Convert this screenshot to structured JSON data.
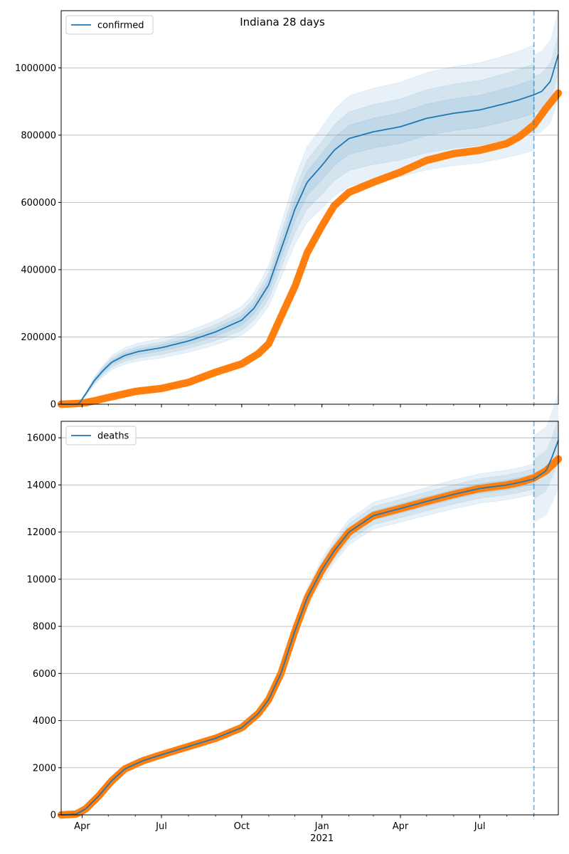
{
  "figure": {
    "title": "Indiana 28 days"
  },
  "colors": {
    "model": "#1f77b4",
    "observed": "#ff7f0e",
    "band": "#1f77b4",
    "grid": "#b0b0b0",
    "axis": "#000000"
  },
  "chart_data": [
    {
      "type": "line",
      "name": "confirmed",
      "legend": {
        "label": "confirmed",
        "placement": "upper-left"
      },
      "grid": "horizontal",
      "x_range": [
        "2020-03-08",
        "2021-09-29"
      ],
      "x_ticks": [
        {
          "date": "2020-04-01",
          "label": "Apr"
        },
        {
          "date": "2020-07-01",
          "label": "Jul"
        },
        {
          "date": "2020-10-01",
          "label": "Oct"
        },
        {
          "date": "2021-01-01",
          "label": "Jan",
          "sublabel": "2021"
        },
        {
          "date": "2021-04-01",
          "label": "Apr"
        },
        {
          "date": "2021-07-01",
          "label": "Jul"
        }
      ],
      "ylim": [
        0,
        1170000
      ],
      "y_ticks": [
        0,
        200000,
        400000,
        600000,
        800000,
        1000000
      ],
      "forecast_start": "2021-09-01",
      "model": [
        [
          "2020-03-08",
          0
        ],
        [
          "2020-03-28",
          0
        ],
        [
          "2020-04-05",
          30000
        ],
        [
          "2020-04-15",
          70000
        ],
        [
          "2020-04-25",
          100000
        ],
        [
          "2020-05-05",
          125000
        ],
        [
          "2020-05-20",
          145000
        ],
        [
          "2020-06-05",
          157000
        ],
        [
          "2020-07-01",
          168000
        ],
        [
          "2020-08-01",
          188000
        ],
        [
          "2020-09-01",
          215000
        ],
        [
          "2020-10-01",
          250000
        ],
        [
          "2020-10-15",
          285000
        ],
        [
          "2020-11-01",
          355000
        ],
        [
          "2020-11-15",
          460000
        ],
        [
          "2020-12-01",
          580000
        ],
        [
          "2020-12-15",
          660000
        ],
        [
          "2021-01-01",
          710000
        ],
        [
          "2021-01-15",
          755000
        ],
        [
          "2021-02-01",
          790000
        ],
        [
          "2021-03-01",
          810000
        ],
        [
          "2021-04-01",
          825000
        ],
        [
          "2021-05-01",
          850000
        ],
        [
          "2021-06-01",
          865000
        ],
        [
          "2021-07-01",
          875000
        ],
        [
          "2021-08-01",
          895000
        ],
        [
          "2021-08-15",
          905000
        ],
        [
          "2021-09-01",
          920000
        ],
        [
          "2021-09-10",
          930000
        ],
        [
          "2021-09-20",
          960000
        ],
        [
          "2021-09-29",
          1040000
        ]
      ],
      "model_bands": [
        {
          "upper": 1.16,
          "lower": 0.82
        },
        {
          "upper": 1.1,
          "lower": 0.88
        },
        {
          "upper": 1.05,
          "lower": 0.94
        }
      ],
      "observed": [
        [
          "2020-03-08",
          0
        ],
        [
          "2020-04-01",
          3000
        ],
        [
          "2020-04-15",
          10000
        ],
        [
          "2020-05-01",
          20000
        ],
        [
          "2020-06-01",
          38000
        ],
        [
          "2020-07-01",
          47000
        ],
        [
          "2020-08-01",
          65000
        ],
        [
          "2020-09-01",
          95000
        ],
        [
          "2020-10-01",
          120000
        ],
        [
          "2020-10-20",
          150000
        ],
        [
          "2020-11-01",
          180000
        ],
        [
          "2020-11-15",
          260000
        ],
        [
          "2020-12-01",
          350000
        ],
        [
          "2020-12-15",
          450000
        ],
        [
          "2021-01-01",
          530000
        ],
        [
          "2021-01-15",
          590000
        ],
        [
          "2021-02-01",
          630000
        ],
        [
          "2021-03-01",
          660000
        ],
        [
          "2021-04-01",
          690000
        ],
        [
          "2021-05-01",
          725000
        ],
        [
          "2021-06-01",
          745000
        ],
        [
          "2021-07-01",
          755000
        ],
        [
          "2021-08-01",
          775000
        ],
        [
          "2021-08-15",
          795000
        ],
        [
          "2021-09-01",
          830000
        ],
        [
          "2021-09-15",
          880000
        ],
        [
          "2021-09-29",
          925000
        ]
      ]
    },
    {
      "type": "line",
      "name": "deaths",
      "legend": {
        "label": "deaths",
        "placement": "upper-left"
      },
      "grid": "horizontal",
      "x_range": [
        "2020-03-08",
        "2021-09-29"
      ],
      "x_ticks": [
        {
          "date": "2020-04-01",
          "label": "Apr"
        },
        {
          "date": "2020-07-01",
          "label": "Jul"
        },
        {
          "date": "2020-10-01",
          "label": "Oct"
        },
        {
          "date": "2021-01-01",
          "label": "Jan",
          "sublabel": "2021"
        },
        {
          "date": "2021-04-01",
          "label": "Apr"
        },
        {
          "date": "2021-07-01",
          "label": "Jul"
        }
      ],
      "ylim": [
        0,
        16700
      ],
      "y_ticks": [
        0,
        2000,
        4000,
        6000,
        8000,
        10000,
        12000,
        14000,
        16000
      ],
      "forecast_start": "2021-09-01",
      "model": [
        [
          "2020-03-08",
          0
        ],
        [
          "2020-03-25",
          30
        ],
        [
          "2020-04-05",
          250
        ],
        [
          "2020-04-20",
          800
        ],
        [
          "2020-05-05",
          1450
        ],
        [
          "2020-05-20",
          1950
        ],
        [
          "2020-06-10",
          2300
        ],
        [
          "2020-07-01",
          2550
        ],
        [
          "2020-08-01",
          2900
        ],
        [
          "2020-09-01",
          3250
        ],
        [
          "2020-10-01",
          3700
        ],
        [
          "2020-10-20",
          4300
        ],
        [
          "2020-11-01",
          4900
        ],
        [
          "2020-11-15",
          6000
        ],
        [
          "2020-12-01",
          7800
        ],
        [
          "2020-12-15",
          9200
        ],
        [
          "2021-01-01",
          10400
        ],
        [
          "2021-01-15",
          11200
        ],
        [
          "2021-02-01",
          12000
        ],
        [
          "2021-03-01",
          12700
        ],
        [
          "2021-04-01",
          13000
        ],
        [
          "2021-05-01",
          13300
        ],
        [
          "2021-06-01",
          13600
        ],
        [
          "2021-07-01",
          13850
        ],
        [
          "2021-08-01",
          14000
        ],
        [
          "2021-08-15",
          14100
        ],
        [
          "2021-09-01",
          14250
        ],
        [
          "2021-09-15",
          14600
        ],
        [
          "2021-09-22",
          15200
        ],
        [
          "2021-09-29",
          15900
        ]
      ],
      "model_bands": [
        {
          "upper": 1.045,
          "lower": 0.955
        },
        {
          "upper": 1.03,
          "lower": 0.97
        },
        {
          "upper": 1.015,
          "lower": 0.985
        }
      ],
      "observed": [
        [
          "2020-03-08",
          0
        ],
        [
          "2020-03-25",
          30
        ],
        [
          "2020-04-05",
          250
        ],
        [
          "2020-04-20",
          800
        ],
        [
          "2020-05-05",
          1450
        ],
        [
          "2020-05-20",
          1950
        ],
        [
          "2020-06-10",
          2300
        ],
        [
          "2020-07-01",
          2550
        ],
        [
          "2020-08-01",
          2900
        ],
        [
          "2020-09-01",
          3250
        ],
        [
          "2020-10-01",
          3700
        ],
        [
          "2020-10-20",
          4300
        ],
        [
          "2020-11-01",
          4900
        ],
        [
          "2020-11-15",
          6000
        ],
        [
          "2020-12-01",
          7800
        ],
        [
          "2020-12-15",
          9200
        ],
        [
          "2021-01-01",
          10400
        ],
        [
          "2021-01-15",
          11200
        ],
        [
          "2021-02-01",
          12000
        ],
        [
          "2021-03-01",
          12700
        ],
        [
          "2021-04-01",
          13000
        ],
        [
          "2021-05-01",
          13300
        ],
        [
          "2021-06-01",
          13600
        ],
        [
          "2021-07-01",
          13850
        ],
        [
          "2021-08-01",
          14000
        ],
        [
          "2021-08-15",
          14100
        ],
        [
          "2021-09-01",
          14300
        ],
        [
          "2021-09-15",
          14600
        ],
        [
          "2021-09-29",
          15100
        ]
      ]
    }
  ]
}
